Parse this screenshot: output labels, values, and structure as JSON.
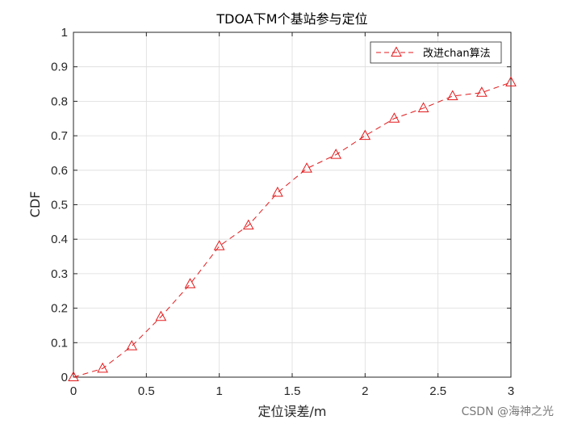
{
  "watermark": "CSDN @海神之光",
  "chart_data": {
    "type": "line",
    "title": "TDOA下M个基站参与定位",
    "xlabel": "定位误差/m",
    "ylabel": "CDF",
    "xlim": [
      0,
      3
    ],
    "ylim": [
      0,
      1
    ],
    "xticks": [
      0,
      0.5,
      1,
      1.5,
      2,
      2.5,
      3
    ],
    "xtick_labels": [
      "0",
      "0.5",
      "1",
      "1.5",
      "2",
      "2.5",
      "3"
    ],
    "yticks": [
      0,
      0.1,
      0.2,
      0.3,
      0.4,
      0.5,
      0.6,
      0.7,
      0.8,
      0.9,
      1
    ],
    "ytick_labels": [
      "0",
      "0.1",
      "0.2",
      "0.3",
      "0.4",
      "0.5",
      "0.6",
      "0.7",
      "0.8",
      "0.9",
      "1"
    ],
    "grid": true,
    "legend_position": "top-right",
    "series": [
      {
        "name": "改进chan算法",
        "color": "#e31a1c",
        "line_style": "dashed",
        "marker": "triangle-up",
        "x": [
          0,
          0.2,
          0.4,
          0.6,
          0.8,
          1.0,
          1.2,
          1.4,
          1.6,
          1.8,
          2.0,
          2.2,
          2.4,
          2.6,
          2.8,
          3.0
        ],
        "y": [
          0,
          0.025,
          0.09,
          0.175,
          0.27,
          0.38,
          0.44,
          0.535,
          0.605,
          0.645,
          0.7,
          0.75,
          0.78,
          0.815,
          0.825,
          0.855
        ]
      }
    ]
  }
}
